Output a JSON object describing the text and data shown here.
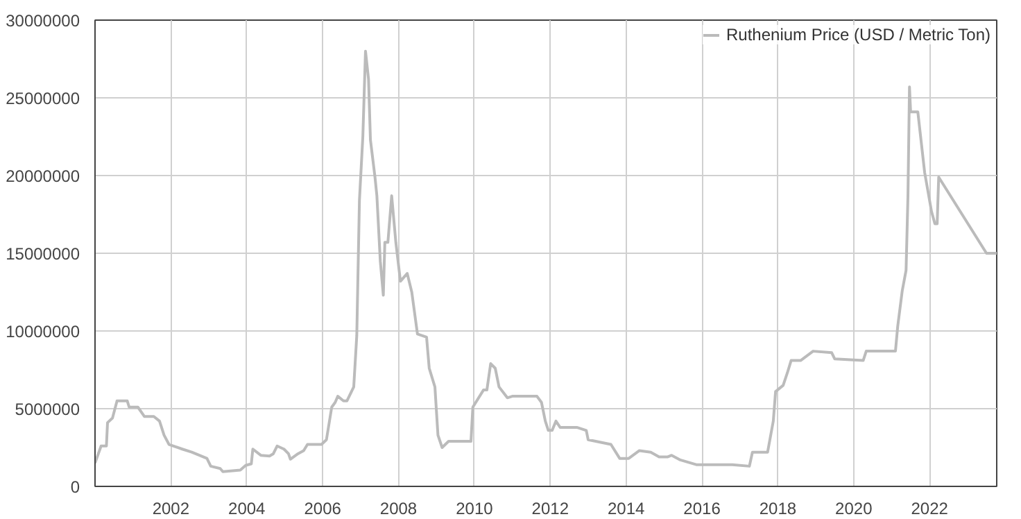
{
  "chart_data": {
    "type": "line",
    "xlim": [
      2000.0,
      2023.77
    ],
    "ylim": [
      0,
      30000000
    ],
    "xticks": [
      2002,
      2004,
      2006,
      2008,
      2010,
      2012,
      2014,
      2016,
      2018,
      2020,
      2022
    ],
    "yticks": [
      0,
      5000000,
      10000000,
      15000000,
      20000000,
      25000000,
      30000000
    ],
    "grid": true,
    "legend": "top right",
    "marker": "none",
    "line_style": "solid",
    "x": [
      2000.0,
      2000.16,
      2000.3,
      2000.33,
      2000.46,
      2000.58,
      2000.85,
      2000.9,
      2001.13,
      2001.3,
      2001.55,
      2001.7,
      2001.82,
      2001.95,
      2002.3,
      2002.55,
      2002.85,
      2002.95,
      2003.05,
      2003.3,
      2003.37,
      2003.83,
      2003.97,
      2004.12,
      2004.16,
      2004.37,
      2004.6,
      2004.7,
      2004.8,
      2004.98,
      2005.1,
      2005.15,
      2005.35,
      2005.5,
      2005.6,
      2005.97,
      2006.1,
      2006.24,
      2006.33,
      2006.4,
      2006.55,
      2006.64,
      2006.82,
      2006.9,
      2006.97,
      2007.06,
      2007.13,
      2007.21,
      2007.26,
      2007.38,
      2007.43,
      2007.52,
      2007.6,
      2007.64,
      2007.72,
      2007.82,
      2007.93,
      2008.05,
      2008.23,
      2008.35,
      2008.5,
      2008.74,
      2008.81,
      2008.96,
      2009.04,
      2009.15,
      2009.32,
      2009.91,
      2009.96,
      2010.24,
      2010.33,
      2010.43,
      2010.55,
      2010.65,
      2010.87,
      2011.0,
      2011.65,
      2011.77,
      2011.87,
      2011.95,
      2012.05,
      2012.15,
      2012.26,
      2012.7,
      2012.95,
      2013.0,
      2013.6,
      2013.83,
      2014.07,
      2014.35,
      2014.65,
      2014.87,
      2015.1,
      2015.2,
      2015.43,
      2015.85,
      2016.8,
      2017.25,
      2017.33,
      2017.73,
      2017.88,
      2017.94,
      2018.14,
      2018.25,
      2018.35,
      2018.6,
      2018.93,
      2019.42,
      2019.5,
      2020.25,
      2020.33,
      2021.1,
      2021.16,
      2021.28,
      2021.38,
      2021.43,
      2021.47,
      2021.5,
      2021.69,
      2021.87,
      2022.05,
      2022.14,
      2022.2,
      2022.24,
      2023.5,
      2023.77
    ],
    "series": [
      {
        "name": "Ruthenium Price (USD / Metric Ton)",
        "color": "#bbbbbb",
        "values": [
          1500000,
          2600000,
          2600000,
          4100000,
          4400000,
          5500000,
          5500000,
          5100000,
          5100000,
          4500000,
          4500000,
          4200000,
          3300000,
          2700000,
          2400000,
          2200000,
          1900000,
          1800000,
          1300000,
          1150000,
          950000,
          1050000,
          1350000,
          1450000,
          2400000,
          2000000,
          1950000,
          2100000,
          2600000,
          2400000,
          2100000,
          1750000,
          2100000,
          2300000,
          2700000,
          2700000,
          3000000,
          5100000,
          5400000,
          5800000,
          5500000,
          5500000,
          6400000,
          9700000,
          18400000,
          22500000,
          28000000,
          26200000,
          22300000,
          19900000,
          18700000,
          14500000,
          12300000,
          15700000,
          15700000,
          18700000,
          15700000,
          13200000,
          13700000,
          12500000,
          9800000,
          9600000,
          7600000,
          6400000,
          3300000,
          2500000,
          2900000,
          2900000,
          5100000,
          6200000,
          6200000,
          7900000,
          7600000,
          6400000,
          5700000,
          5800000,
          5800000,
          5400000,
          4200000,
          3600000,
          3600000,
          4200000,
          3800000,
          3800000,
          3600000,
          3000000,
          2700000,
          1800000,
          1800000,
          2300000,
          2200000,
          1900000,
          1900000,
          2000000,
          1700000,
          1400000,
          1400000,
          1300000,
          2200000,
          2200000,
          4200000,
          6100000,
          6500000,
          7300000,
          8100000,
          8100000,
          8700000,
          8600000,
          8200000,
          8100000,
          8700000,
          8700000,
          10300000,
          12600000,
          13900000,
          18700000,
          25700000,
          24100000,
          24100000,
          20200000,
          17700000,
          16900000,
          16900000,
          19900000,
          15000000,
          15000000
        ]
      }
    ]
  }
}
